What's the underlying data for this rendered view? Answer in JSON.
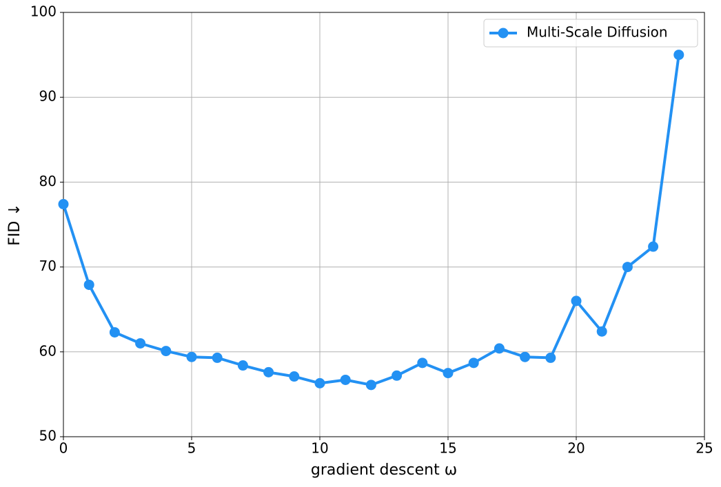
{
  "chart_data": {
    "type": "line",
    "x_label": "gradient descent ω",
    "y_label": "FID ↓",
    "x": [
      0,
      1,
      2,
      3,
      4,
      5,
      6,
      7,
      8,
      9,
      10,
      11,
      12,
      13,
      14,
      15,
      16,
      17,
      18,
      19,
      20,
      21,
      22,
      23,
      24
    ],
    "series": [
      {
        "name": "Multi-Scale Diffusion",
        "color": "#2391f3",
        "values": [
          77.4,
          67.9,
          62.3,
          61.0,
          60.1,
          59.4,
          59.3,
          58.4,
          57.6,
          57.1,
          56.3,
          56.7,
          56.1,
          57.2,
          58.7,
          57.5,
          58.7,
          60.4,
          59.4,
          59.3,
          66.0,
          62.4,
          70.0,
          72.4,
          95.0
        ]
      }
    ],
    "xlim": [
      0,
      25
    ],
    "xticks": [
      0,
      5,
      10,
      15,
      20,
      25
    ],
    "ylim": [
      50,
      100
    ],
    "yticks": [
      50,
      60,
      70,
      80,
      90,
      100
    ],
    "grid": true,
    "legend": "upper right"
  }
}
